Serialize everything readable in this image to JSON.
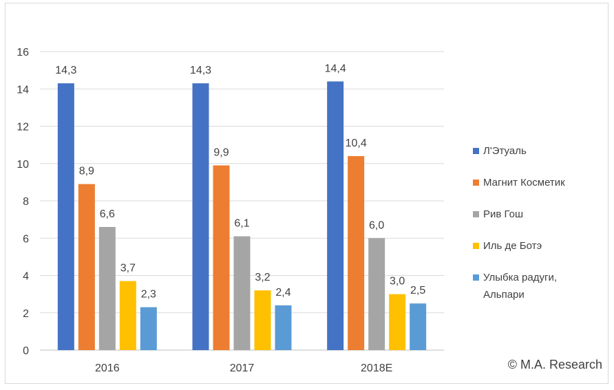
{
  "chart_data": {
    "type": "bar",
    "title": "",
    "xlabel": "",
    "ylabel": "",
    "ylim": [
      0,
      16
    ],
    "yticks": [
      "0",
      "2",
      "4",
      "6",
      "8",
      "10",
      "12",
      "14",
      "16"
    ],
    "categories": [
      "2016",
      "2017",
      "2018E"
    ],
    "grid": true,
    "legend_position": "right",
    "series": [
      {
        "name": "Л'Этуаль",
        "color": "#4472c4",
        "values": [
          14.3,
          14.3,
          14.4
        ],
        "labels": [
          "14,3",
          "14,3",
          "14,4"
        ]
      },
      {
        "name": "Магнит Косметик",
        "color": "#ed7d31",
        "values": [
          8.9,
          9.9,
          10.4
        ],
        "labels": [
          "8,9",
          "9,9",
          "10,4"
        ]
      },
      {
        "name": "Рив Гош",
        "color": "#a5a5a5",
        "values": [
          6.6,
          6.1,
          6.0
        ],
        "labels": [
          "6,6",
          "6,1",
          "6,0"
        ]
      },
      {
        "name": "Иль де Ботэ",
        "color": "#ffc000",
        "values": [
          3.7,
          3.2,
          3.0
        ],
        "labels": [
          "3,7",
          "3,2",
          "3,0"
        ]
      },
      {
        "name": "Улыбка радуги, Альпари",
        "name_lines": [
          "Улыбка радуги,",
          "Альпари"
        ],
        "color": "#5b9bd5",
        "values": [
          2.3,
          2.4,
          2.5
        ],
        "labels": [
          "2,3",
          "2,4",
          "2,5"
        ]
      }
    ],
    "source_note": "© M.A. Research"
  }
}
